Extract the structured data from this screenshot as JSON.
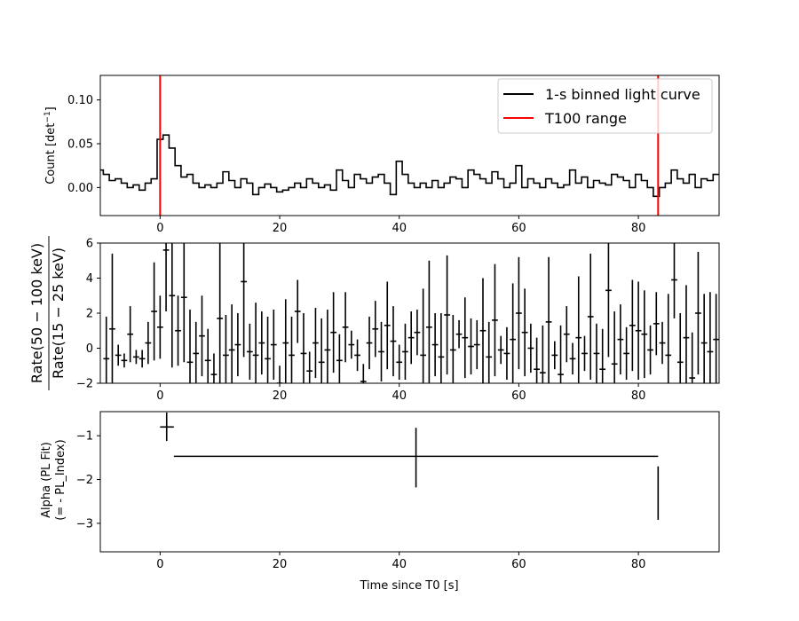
{
  "chart_data": [
    {
      "type": "line",
      "panel": "top",
      "ylabel": "Count [det$^{-1}$]",
      "ylabel_main": "Count [det",
      "ylabel_sup": "−1",
      "ylabel_end": "]",
      "xlim": [
        -10,
        93.5
      ],
      "ylim": [
        -0.032,
        0.128
      ],
      "xticks": [
        0,
        20,
        40,
        60,
        80
      ],
      "xtick_labels": [
        "0",
        "20",
        "40",
        "60",
        "80"
      ],
      "yticks": [
        0.0,
        0.05,
        0.1
      ],
      "ytick_labels": [
        "0.00",
        "0.05",
        "0.10"
      ],
      "legend_position": "upper right",
      "series": [
        {
          "name": "1-s binned light curve",
          "color": "#000000",
          "step": "mid",
          "x": [
            -10,
            -9,
            -8,
            -7,
            -6,
            -5,
            -4,
            -3,
            -2,
            -1,
            0,
            1,
            2,
            3,
            4,
            5,
            6,
            7,
            8,
            9,
            10,
            11,
            12,
            13,
            14,
            15,
            16,
            17,
            18,
            19,
            20,
            21,
            22,
            23,
            24,
            25,
            26,
            27,
            28,
            29,
            30,
            31,
            32,
            33,
            34,
            35,
            36,
            37,
            38,
            39,
            40,
            41,
            42,
            43,
            44,
            45,
            46,
            47,
            48,
            49,
            50,
            51,
            52,
            53,
            54,
            55,
            56,
            57,
            58,
            59,
            60,
            61,
            62,
            63,
            64,
            65,
            66,
            67,
            68,
            69,
            70,
            71,
            72,
            73,
            74,
            75,
            76,
            77,
            78,
            79,
            80,
            81,
            82,
            83,
            84,
            85,
            86,
            87,
            88,
            89,
            90,
            91,
            92,
            93
          ],
          "y": [
            0.02,
            0.015,
            0.008,
            0.01,
            0.005,
            0.0,
            0.003,
            -0.003,
            0.005,
            0.01,
            0.055,
            0.06,
            0.045,
            0.025,
            0.012,
            0.015,
            0.005,
            0.0,
            0.003,
            0.0,
            0.005,
            0.018,
            0.008,
            0.0,
            0.01,
            0.005,
            -0.008,
            0.0,
            0.004,
            0.0,
            -0.005,
            -0.003,
            0.0,
            0.005,
            0.0,
            0.01,
            0.005,
            0.0,
            0.003,
            -0.003,
            0.02,
            0.008,
            0.0,
            0.015,
            0.01,
            0.005,
            0.012,
            0.015,
            0.005,
            -0.008,
            0.03,
            0.015,
            0.005,
            0.0,
            0.005,
            0.0,
            0.008,
            0.0,
            0.005,
            0.012,
            0.01,
            0.0,
            0.02,
            0.015,
            0.01,
            0.005,
            0.018,
            0.01,
            0.0,
            0.005,
            0.025,
            0.0,
            0.01,
            0.005,
            0.0,
            0.01,
            0.005,
            0.0,
            0.003,
            0.02,
            0.005,
            0.012,
            0.0,
            0.008,
            0.005,
            0.003,
            0.015,
            0.012,
            0.008,
            0.0,
            0.015,
            0.008,
            0.0,
            -0.01,
            0.0,
            0.005,
            0.02,
            0.01,
            0.005,
            0.015,
            0.0,
            0.01,
            0.008,
            0.015
          ]
        },
        {
          "name": "T100 range",
          "color": "#ff0000",
          "type": "vline",
          "x": [
            0.0,
            83.3
          ]
        }
      ]
    },
    {
      "type": "scatter",
      "panel": "middle",
      "ylabel": "Rate(50 − 100 keV) / Rate(15 − 25 keV)",
      "ylabel_top": "Rate(50 − 100 keV)",
      "ylabel_bottom": "Rate(15 − 25 keV)",
      "xlim": [
        -10,
        93.5
      ],
      "ylim": [
        -2,
        6
      ],
      "xticks": [
        0,
        20,
        40,
        60,
        80
      ],
      "xtick_labels": [
        "0",
        "20",
        "40",
        "60",
        "80"
      ],
      "yticks": [
        -2,
        0,
        2,
        4,
        6
      ],
      "ytick_labels": [
        "−2",
        "0",
        "2",
        "4",
        "6"
      ],
      "series": [
        {
          "color": "#000000",
          "x": [
            -9,
            -8,
            -7,
            -6,
            -5,
            -4,
            -3,
            -2,
            -1,
            0,
            1,
            2,
            3,
            4,
            5,
            6,
            7,
            8,
            9,
            10,
            11,
            12,
            13,
            14,
            15,
            16,
            17,
            18,
            19,
            20,
            21,
            22,
            23,
            24,
            25,
            26,
            27,
            28,
            29,
            30,
            31,
            32,
            33,
            34,
            35,
            36,
            37,
            38,
            39,
            40,
            41,
            42,
            43,
            44,
            45,
            46,
            47,
            48,
            49,
            50,
            51,
            52,
            53,
            54,
            55,
            56,
            57,
            58,
            59,
            60,
            61,
            62,
            63,
            64,
            65,
            66,
            67,
            68,
            69,
            70,
            71,
            72,
            73,
            74,
            75,
            76,
            77,
            78,
            79,
            80,
            81,
            82,
            83,
            84,
            85,
            86,
            87,
            88,
            89,
            90,
            91,
            92,
            93
          ],
          "y": [
            -0.6,
            1.1,
            -0.4,
            -0.7,
            0.8,
            -0.5,
            -0.6,
            0.3,
            2.1,
            1.2,
            5.6,
            3.0,
            1.0,
            2.9,
            -0.8,
            -0.3,
            0.7,
            -0.7,
            -1.5,
            1.7,
            -0.4,
            -0.1,
            0.2,
            3.8,
            -0.2,
            -0.4,
            0.3,
            -0.6,
            0.2,
            -2.0,
            0.3,
            -0.4,
            2.1,
            -0.3,
            -1.3,
            0.3,
            -0.8,
            -0.1,
            0.9,
            -0.7,
            1.2,
            0.2,
            -0.4,
            -1.9,
            0.3,
            1.1,
            -0.2,
            1.3,
            0.4,
            -0.8,
            -0.2,
            0.6,
            0.9,
            -0.4,
            1.2,
            0.2,
            -0.5,
            1.9,
            -0.1,
            0.8,
            0.6,
            0.1,
            0.2,
            1.0,
            -0.5,
            1.6,
            -0.1,
            -0.3,
            0.5,
            2.0,
            0.9,
            0.0,
            -1.2,
            -1.4,
            1.5,
            -0.4,
            -1.5,
            0.8,
            -0.6,
            0.6,
            -0.3,
            1.8,
            -0.3,
            -1.2,
            3.3,
            -0.9,
            0.5,
            -0.3,
            1.3,
            1.0,
            0.8,
            -0.1,
            1.4,
            0.3,
            -0.4,
            3.9,
            -0.8,
            0.6,
            -1.7,
            2.0,
            0.3,
            -0.2,
            0.5
          ],
          "yerr": [
            2.4,
            4.3,
            0.6,
            0.4,
            1.6,
            0.4,
            0.5,
            1.2,
            2.8,
            1.8,
            3.5,
            4.1,
            2.0,
            3.7,
            3.0,
            1.8,
            2.3,
            1.8,
            1.2,
            4.5,
            2.3,
            2.6,
            1.8,
            4.3,
            1.6,
            3.0,
            1.8,
            2.4,
            2.0,
            1.0,
            2.5,
            2.2,
            1.8,
            2.3,
            1.1,
            2.0,
            2.5,
            2.3,
            2.3,
            1.5,
            2.0,
            0.8,
            0.9,
            1.0,
            1.5,
            1.6,
            1.7,
            2.5,
            2.0,
            1.0,
            1.6,
            1.5,
            1.3,
            3.8,
            3.8,
            1.8,
            2.5,
            3.4,
            2.0,
            0.8,
            2.3,
            1.6,
            1.4,
            3.0,
            2.0,
            3.2,
            0.8,
            1.5,
            3.2,
            3.2,
            2.5,
            1.4,
            1.8,
            2.7,
            3.7,
            0.8,
            2.8,
            1.6,
            0.9,
            3.5,
            1.0,
            3.6,
            1.7,
            2.3,
            3.8,
            3.0,
            2.0,
            1.5,
            2.6,
            2.8,
            2.5,
            1.4,
            1.8,
            1.2,
            3.5,
            2.2,
            2.8,
            3.0,
            2.6,
            3.5,
            2.8,
            3.4,
            2.6
          ]
        }
      ]
    },
    {
      "type": "scatter",
      "panel": "bottom",
      "xlabel": "Time since T0 [s]",
      "ylabel": "Alpha (PL Fit)\n(= - PL_Index)",
      "ylabel_line1": "Alpha (PL Fit)",
      "ylabel_line2": "(= - PL_Index)",
      "xlim": [
        -10,
        93.5
      ],
      "ylim": [
        -3.65,
        -0.45
      ],
      "xticks": [
        0,
        20,
        40,
        60,
        80
      ],
      "xtick_labels": [
        "0",
        "20",
        "40",
        "60",
        "80"
      ],
      "yticks": [
        -1,
        -2,
        -3
      ],
      "ytick_labels": [
        "−1",
        "−2",
        "−3"
      ],
      "series": [
        {
          "color": "#000000",
          "points": [
            {
              "x": 1.1,
              "y": -0.8,
              "x_lo": 0.0,
              "x_hi": 2.3,
              "y_lo": -1.12,
              "y_hi": -0.47
            },
            {
              "x": 42.8,
              "y": -1.47,
              "x_lo": 2.3,
              "x_hi": 83.3,
              "y_lo": -2.18,
              "y_hi": -0.82
            },
            {
              "x": 83.3,
              "y": -2.3,
              "x_lo": 83.3,
              "x_hi": 83.3,
              "y_lo": -2.92,
              "y_hi": -1.7
            }
          ]
        }
      ]
    }
  ]
}
